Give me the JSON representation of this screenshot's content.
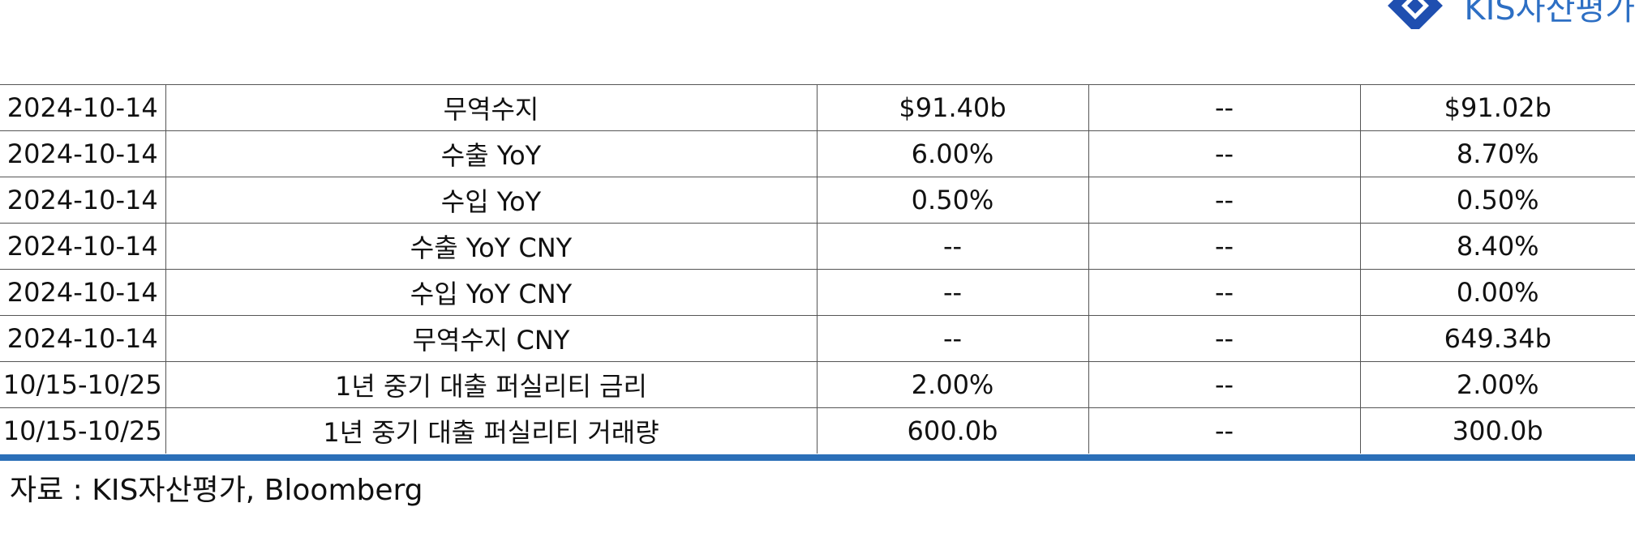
{
  "logo": {
    "text": "KIS자산평가",
    "brand_color": "#2d6fc4",
    "icon": "kis-logo-icon"
  },
  "table": {
    "rows": [
      [
        "2024-10-14",
        "무역수지",
        "$91.40b",
        "--",
        "$91.02b"
      ],
      [
        "2024-10-14",
        "수출 YoY",
        "6.00%",
        "--",
        "8.70%"
      ],
      [
        "2024-10-14",
        "수입 YoY",
        "0.50%",
        "--",
        "0.50%"
      ],
      [
        "2024-10-14",
        "수출 YoY CNY",
        "--",
        "--",
        "8.40%"
      ],
      [
        "2024-10-14",
        "수입 YoY CNY",
        "--",
        "--",
        "0.00%"
      ],
      [
        "2024-10-14",
        "무역수지 CNY",
        "--",
        "--",
        "649.34b"
      ],
      [
        "10/15-10/25",
        "1년 중기 대출 퍼실리티 금리",
        "2.00%",
        "--",
        "2.00%"
      ],
      [
        "10/15-10/25",
        "1년 중기 대출 퍼실리티 거래량",
        "600.0b",
        "--",
        "300.0b"
      ]
    ],
    "rule_color": "#2b6fb8"
  },
  "source": "자료 : KIS자산평가, Bloomberg"
}
